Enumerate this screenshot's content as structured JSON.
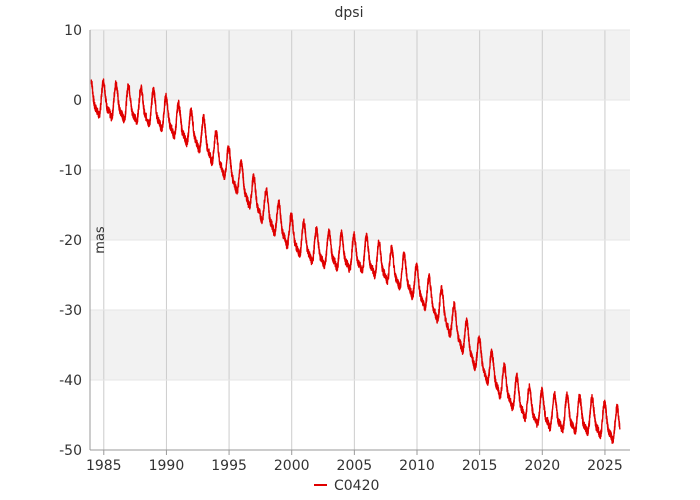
{
  "chart_data": {
    "type": "line",
    "title": "dpsi",
    "xlabel": "",
    "ylabel": "mas",
    "xlim": [
      1983.9,
      2027.0
    ],
    "ylim": [
      -50,
      10
    ],
    "x_ticks": [
      1985,
      1990,
      1995,
      2000,
      2005,
      2010,
      2015,
      2020,
      2025
    ],
    "y_ticks": [
      10,
      0,
      -10,
      -20,
      -30,
      -40,
      -50
    ],
    "grid": true,
    "band_fill": "#f2f2f2",
    "legend": {
      "position": "bottom-center"
    },
    "series": [
      {
        "name": "C0420",
        "color": "#e00000",
        "x_start": 1984.0,
        "x_end": 2026.2,
        "trend_knots": [
          [
            1984.0,
            0.0
          ],
          [
            1989.0,
            -1.5
          ],
          [
            1993.0,
            -5.5
          ],
          [
            1997.0,
            -14.0
          ],
          [
            2000.0,
            -19.5
          ],
          [
            2002.0,
            -21.5
          ],
          [
            2006.0,
            -22.5
          ],
          [
            2009.0,
            -25.0
          ],
          [
            2012.0,
            -30.0
          ],
          [
            2015.0,
            -37.0
          ],
          [
            2017.0,
            -41.0
          ],
          [
            2019.0,
            -44.0
          ],
          [
            2021.0,
            -45.0
          ],
          [
            2024.0,
            -45.5
          ],
          [
            2026.2,
            -47.0
          ]
        ],
        "annual_amplitude": 2.2,
        "period_years": 1.0
      }
    ]
  }
}
